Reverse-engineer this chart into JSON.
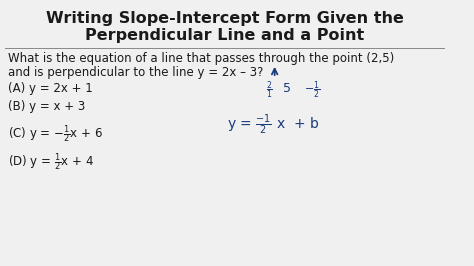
{
  "title_line1": "Writing Slope-Intercept Form Given the",
  "title_line2": "Perpendicular Line and a Point",
  "question_line1": "What is the equation of a line that passes through the point (2,5)",
  "question_line2": "and is perpendicular to the line y = 2x – 3?",
  "answer_A": "(A) y = 2x + 1",
  "answer_B": "(B) y = x + 3",
  "bg_color": "#f0f0f0",
  "text_color": "#1a1a1a",
  "annot_color": "#1a3a7a",
  "title_fontsize": 11.5,
  "body_fontsize": 8.5,
  "annot_fontsize": 8.0
}
